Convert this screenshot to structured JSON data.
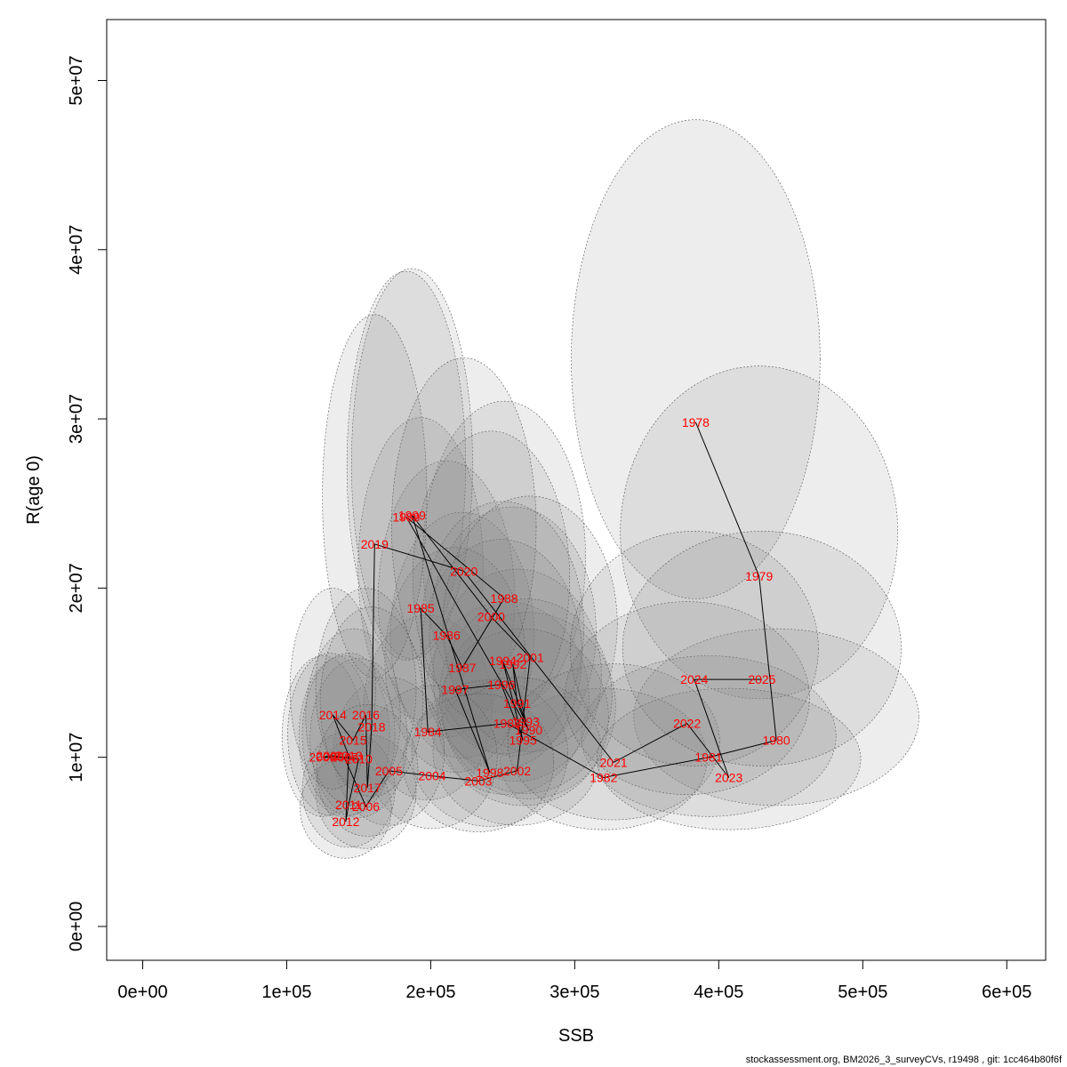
{
  "chart_data": {
    "type": "scatter",
    "xlabel": "SSB",
    "ylabel": "R(age 0)",
    "xlim": [
      -25000,
      627000
    ],
    "ylim": [
      -2000000,
      53600000
    ],
    "x_ticks": [
      0,
      100000,
      200000,
      300000,
      400000,
      500000,
      600000
    ],
    "x_tick_labels": [
      "0e+00",
      "1e+05",
      "2e+05",
      "3e+05",
      "4e+05",
      "5e+05",
      "6e+05"
    ],
    "y_ticks": [
      0,
      10000000,
      20000000,
      30000000,
      40000000,
      50000000
    ],
    "y_tick_labels": [
      "0e+00",
      "1e+07",
      "2e+07",
      "3e+07",
      "4e+07",
      "5e+07"
    ],
    "grid": false,
    "points": [
      {
        "year": "1978",
        "x": 384000,
        "y": 29800000
      },
      {
        "year": "1979",
        "x": 428000,
        "y": 20700000
      },
      {
        "year": "1980",
        "x": 440000,
        "y": 11000000
      },
      {
        "year": "1981",
        "x": 393000,
        "y": 10000000
      },
      {
        "year": "1982",
        "x": 320000,
        "y": 8800000
      },
      {
        "year": "1983",
        "x": 253000,
        "y": 12000000
      },
      {
        "year": "1984",
        "x": 198000,
        "y": 11500000
      },
      {
        "year": "1985",
        "x": 193000,
        "y": 18800000
      },
      {
        "year": "1986",
        "x": 211000,
        "y": 17200000
      },
      {
        "year": "1987",
        "x": 222000,
        "y": 15300000
      },
      {
        "year": "1988",
        "x": 251000,
        "y": 19400000
      },
      {
        "year": "1989",
        "x": 183000,
        "y": 24200000
      },
      {
        "year": "1990",
        "x": 268000,
        "y": 11600000
      },
      {
        "year": "1991",
        "x": 260000,
        "y": 13200000
      },
      {
        "year": "1992",
        "x": 257000,
        "y": 15500000
      },
      {
        "year": "1993",
        "x": 266000,
        "y": 12100000
      },
      {
        "year": "1994",
        "x": 250000,
        "y": 15700000
      },
      {
        "year": "1995",
        "x": 264000,
        "y": 11000000
      },
      {
        "year": "1996",
        "x": 249000,
        "y": 14300000
      },
      {
        "year": "1997",
        "x": 217000,
        "y": 14000000
      },
      {
        "year": "1998",
        "x": 241000,
        "y": 9100000
      },
      {
        "year": "1999",
        "x": 187000,
        "y": 24300000
      },
      {
        "year": "2000",
        "x": 242000,
        "y": 18300000
      },
      {
        "year": "2001",
        "x": 269000,
        "y": 15900000
      },
      {
        "year": "2002",
        "x": 260000,
        "y": 9200000
      },
      {
        "year": "2003",
        "x": 233000,
        "y": 8600000
      },
      {
        "year": "2004",
        "x": 201000,
        "y": 8900000
      },
      {
        "year": "2005",
        "x": 171000,
        "y": 9200000
      },
      {
        "year": "2006",
        "x": 155000,
        "y": 7100000
      },
      {
        "year": "2007",
        "x": 140000,
        "y": 10000000
      },
      {
        "year": "2008",
        "x": 125000,
        "y": 10000000
      },
      {
        "year": "2009",
        "x": 130000,
        "y": 10100000
      },
      {
        "year": "2010",
        "x": 150000,
        "y": 9900000
      },
      {
        "year": "2011",
        "x": 143000,
        "y": 7200000
      },
      {
        "year": "2012",
        "x": 141000,
        "y": 6200000
      },
      {
        "year": "2013",
        "x": 143000,
        "y": 10100000
      },
      {
        "year": "2014",
        "x": 132000,
        "y": 12500000
      },
      {
        "year": "2015",
        "x": 146000,
        "y": 11000000
      },
      {
        "year": "2016",
        "x": 155000,
        "y": 12500000
      },
      {
        "year": "2017",
        "x": 156000,
        "y": 8200000
      },
      {
        "year": "2018",
        "x": 159000,
        "y": 11800000
      },
      {
        "year": "2019",
        "x": 161000,
        "y": 22600000
      },
      {
        "year": "2020",
        "x": 223000,
        "y": 21000000
      },
      {
        "year": "2021",
        "x": 327000,
        "y": 9700000
      },
      {
        "year": "2022",
        "x": 378000,
        "y": 12000000
      },
      {
        "year": "2023",
        "x": 407000,
        "y": 8800000
      },
      {
        "year": "2024",
        "x": 383000,
        "y": 14600000
      },
      {
        "year": "2025",
        "x": 430000,
        "y": 14600000
      }
    ]
  },
  "footer_text": "stockassessment.org, BM2026_3_surveyCVs, r19498 , git: 1cc464b80f6f",
  "colors": {
    "label": "#ff0000",
    "ellipse_fill": "#808080",
    "ellipse_stroke": "#555555",
    "line": "#000000"
  }
}
